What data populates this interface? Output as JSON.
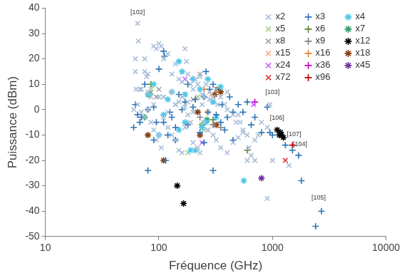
{
  "chart_data": {
    "type": "scatter",
    "x_label": "Fréquence (GHz)",
    "y_label": "Puissance (dBm)",
    "log": "x",
    "grid": false,
    "legend": "upper right",
    "xlim": [
      10,
      10000
    ],
    "xticks": [
      10,
      100,
      1000,
      10000
    ],
    "ylim": [
      -50,
      40
    ],
    "yticks": [
      -50,
      -40,
      -30,
      -20,
      -10,
      0,
      10,
      20,
      30,
      40
    ],
    "series": [
      {
        "name": "x2",
        "color": "#a9bfd9",
        "marker": "x",
        "x": [
          65,
          66,
          62,
          62,
          63,
          68,
          70,
          75,
          75,
          78,
          80,
          80,
          85,
          90,
          95,
          100,
          105,
          110,
          120,
          130,
          140,
          150,
          160,
          170,
          175,
          180,
          190,
          200,
          210,
          220,
          230,
          240,
          250,
          260,
          280,
          300,
          320,
          350,
          380,
          400,
          450,
          500,
          520,
          550,
          600,
          620,
          650,
          700,
          750,
          800,
          900,
          950,
          65,
          70,
          75,
          80,
          85,
          90,
          95,
          100,
          105,
          110,
          120,
          130,
          140,
          150,
          160,
          170,
          180,
          190,
          200,
          220,
          230,
          250,
          270,
          300,
          320,
          350,
          400,
          450,
          500,
          600,
          900,
          1400,
          1000,
          700,
          480,
          550,
          110,
          130,
          150,
          170,
          200,
          240,
          280,
          330,
          400,
          60,
          90,
          100,
          120,
          140,
          160,
          180
        ],
        "values": [
          34,
          27,
          20,
          15,
          8,
          8,
          8,
          15,
          20,
          13,
          14,
          7,
          5,
          25,
          24,
          26,
          25,
          20,
          22,
          14,
          18,
          12,
          11,
          24,
          19,
          14,
          10,
          8,
          12,
          10,
          13,
          6,
          5,
          10,
          7,
          5,
          8,
          5,
          2,
          0,
          -2,
          -2,
          -5,
          -8,
          -10,
          -15,
          -18,
          -20,
          -10,
          -5,
          -7,
          2,
          2,
          -1,
          -3,
          0,
          -5,
          -8,
          -12,
          -10,
          -15,
          -3,
          -7,
          -10,
          -12,
          -16,
          -17,
          -7,
          -2,
          -5,
          -13,
          -15,
          -17,
          -5,
          -8,
          -10,
          -12,
          -15,
          -17,
          -13,
          -11,
          -20,
          -35,
          -22,
          -20,
          -12,
          -5,
          -9,
          5,
          7,
          3,
          1,
          -1,
          2,
          4,
          2,
          7,
          0,
          2,
          5,
          -1,
          2,
          5,
          3
        ]
      },
      {
        "name": "x3",
        "color": "#2e75b6",
        "marker": "+",
        "x": [
          60,
          62,
          65,
          68,
          70,
          75,
          80,
          80,
          90,
          95,
          100,
          110,
          112,
          110,
          115,
          120,
          125,
          130,
          140,
          150,
          160,
          170,
          180,
          200,
          210,
          230,
          250,
          260,
          270,
          280,
          300,
          300,
          320,
          350,
          360,
          380,
          400,
          420,
          450,
          500,
          550,
          600,
          650,
          700,
          800,
          900,
          950,
          1000,
          1300,
          1700,
          1800,
          2400,
          2700,
          1500,
          140,
          180,
          250,
          90,
          450
        ],
        "values": [
          -7,
          2,
          -2,
          -5,
          -3,
          10,
          0,
          -24,
          1,
          -5,
          16,
          23,
          21,
          -5,
          -20,
          -10,
          -1,
          -3,
          -7,
          6,
          0,
          3,
          -6,
          1,
          4,
          -9,
          5,
          15,
          -1,
          8,
          10,
          -24,
          -2,
          -5,
          2,
          -8,
          -3,
          5,
          -1,
          2,
          -1,
          3,
          -6,
          -3,
          -9,
          1,
          -9,
          -10,
          -14,
          -18,
          -28,
          -46,
          -40,
          -16,
          -12,
          10,
          -13,
          -12,
          -12
        ]
      },
      {
        "name": "x4",
        "color": "#4bc6e8",
        "marker": "star",
        "x": [
          100,
          110,
          120,
          130,
          150,
          160,
          170,
          190,
          210,
          240,
          260,
          300,
          320,
          350,
          560,
          80,
          90,
          200,
          230,
          270,
          150,
          170
        ],
        "values": [
          -10,
          -2,
          4,
          7,
          19,
          15,
          -5,
          -16,
          -16,
          -7,
          -5,
          3,
          -3,
          9,
          -28,
          6,
          10,
          12,
          8,
          12,
          -8,
          6
        ]
      },
      {
        "name": "x5",
        "color": "#a9d18e",
        "marker": "x",
        "x": [
          180,
          220,
          240,
          250,
          85
        ],
        "values": [
          -17,
          5,
          -6,
          -8,
          8
        ]
      },
      {
        "name": "x6",
        "color": "#548235",
        "marker": "+",
        "x": [
          85,
          200,
          600,
          300
        ],
        "values": [
          10,
          12,
          -16,
          -4
        ]
      },
      {
        "name": "x7",
        "color": "#2e9e6f",
        "marker": "star",
        "x": [
          75,
          82,
          240,
          265
        ],
        "values": [
          -3,
          6,
          -6,
          -4
        ]
      },
      {
        "name": "x8",
        "color": "#a5a5a5",
        "marker": "x",
        "x": [
          85,
          95,
          100,
          140,
          170,
          200,
          230,
          270,
          300
        ],
        "values": [
          7,
          5,
          8,
          2,
          6,
          4,
          14,
          -8,
          3
        ]
      },
      {
        "name": "x9",
        "color": "#7f7f7f",
        "marker": "+",
        "x": [
          230,
          300,
          350
        ],
        "values": [
          -3,
          -6,
          -7
        ]
      },
      {
        "name": "x12",
        "color": "#000000",
        "marker": "star",
        "x": [
          145,
          165,
          1100,
          1150,
          1180,
          1250,
          1200
        ],
        "values": [
          -30,
          -37,
          -8,
          -10,
          -9,
          -11,
          -10
        ]
      },
      {
        "name": "x15",
        "color": "#f4b183",
        "marker": "x",
        "x": [
          270,
          290
        ],
        "values": [
          -1,
          6
        ]
      },
      {
        "name": "x16",
        "color": "#ed7d31",
        "marker": "+",
        "x": [
          250
        ],
        "values": [
          8
        ]
      },
      {
        "name": "x18",
        "color": "#843c0c",
        "marker": "star",
        "x": [
          80,
          110,
          220,
          230,
          310,
          330,
          350,
          320
        ],
        "values": [
          -10,
          -20,
          -1,
          -10,
          6,
          8,
          7,
          -6
        ]
      },
      {
        "name": "x24",
        "color": "#cc66ff",
        "marker": "x",
        "x": [
          170,
          240,
          680
        ],
        "values": [
          12,
          -13,
          2
        ]
      },
      {
        "name": "x36",
        "color": "#cc00cc",
        "marker": "+",
        "x": [
          700
        ],
        "values": [
          3
        ]
      },
      {
        "name": "x45",
        "color": "#7030a0",
        "marker": "star",
        "x": [
          800
        ],
        "values": [
          -27
        ]
      },
      {
        "name": "x72",
        "color": "#e03c3c",
        "marker": "x",
        "x": [
          1300
        ],
        "values": [
          -20
        ]
      },
      {
        "name": "x96",
        "color": "#c00000",
        "marker": "+",
        "x": [
          1500
        ],
        "values": [
          -14
        ]
      }
    ],
    "annotations": [
      {
        "text": "[102]",
        "x": 65,
        "y": 37
      },
      {
        "text": "[103]",
        "x": 1000,
        "y": 5.5
      },
      {
        "text": "[106]",
        "x": 1100,
        "y": -4.5
      },
      {
        "text": "[107]",
        "x": 1550,
        "y": -11
      },
      {
        "text": "[104]",
        "x": 1750,
        "y": -15
      },
      {
        "text": "[105]",
        "x": 2550,
        "y": -36
      }
    ]
  }
}
